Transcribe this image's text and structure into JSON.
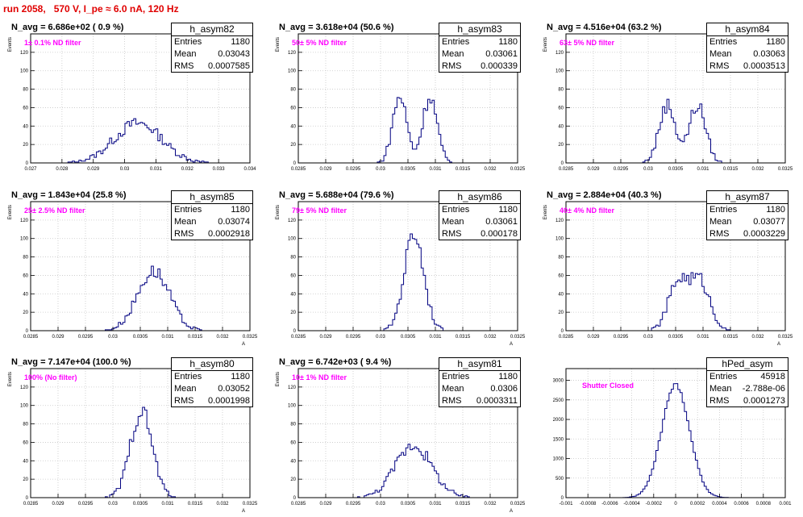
{
  "page_title": "run 2058,   570 V, I_pe ≈ 6.0 nA, 120 Hz",
  "stat_labels": {
    "entries": "Entries",
    "mean": "Mean",
    "rms": "RMS"
  },
  "colors": {
    "histogram": "#000080",
    "grid": "#c8c8c8",
    "title": "#e00000",
    "annotation": "#ff00ff"
  },
  "chart_data": [
    {
      "type": "bar",
      "name": "h_asym82",
      "title": "N_avg = 6.686e+02 ( 0.9 %)",
      "annotation": "1± 0.1% ND filter",
      "entries": "1180",
      "mean": "0.03043",
      "rms": "0.0007585",
      "xlim": [
        0.027,
        0.034
      ],
      "ylim": [
        0,
        140
      ],
      "xticks": [
        0.027,
        0.028,
        0.029,
        0.03,
        0.031,
        0.032,
        0.033,
        0.034
      ],
      "xticklabels": [
        "0.027",
        "0.028",
        "0.029",
        "0.03",
        "0.031",
        "0.032",
        "0.033",
        "0.034"
      ],
      "yticks": [
        0,
        20,
        40,
        60,
        80,
        100,
        120
      ],
      "yticklabels": [
        "0",
        "20",
        "40",
        "60",
        "80",
        "100",
        "120"
      ],
      "xlabel": "",
      "ylabel": "Events",
      "grid": true,
      "dist": {
        "type": "gauss",
        "mu": 0.03043,
        "sigma": 0.00076,
        "n": 1180
      }
    },
    {
      "type": "bar",
      "name": "h_asym83",
      "title": "N_avg = 3.618e+04 (50.6 %)",
      "annotation": "50± 5% ND filter",
      "entries": "1180",
      "mean": "0.03061",
      "rms": "0.000339",
      "xlim": [
        0.0285,
        0.0325
      ],
      "ylim": [
        0,
        140
      ],
      "xticks": [
        0.0285,
        0.029,
        0.0295,
        0.03,
        0.0305,
        0.031,
        0.0315,
        0.032,
        0.0325
      ],
      "xticklabels": [
        "0.0285",
        "0.029",
        "0.0295",
        "0.03",
        "0.0305",
        "0.031",
        "0.0315",
        "0.032",
        "0.0325"
      ],
      "yticks": [
        0,
        20,
        40,
        60,
        80,
        100,
        120
      ],
      "yticklabels": [
        "0",
        "20",
        "40",
        "60",
        "80",
        "100",
        "120"
      ],
      "xlabel": "",
      "ylabel": "Events",
      "grid": true,
      "dist": {
        "type": "double",
        "mu1": 0.03035,
        "mu2": 0.0309,
        "sigma": 0.00013,
        "n": 1180
      }
    },
    {
      "type": "bar",
      "name": "h_asym84",
      "title": "N_avg = 4.516e+04 (63.2 %)",
      "annotation": "63± 5% ND filter",
      "entries": "1180",
      "mean": "0.03063",
      "rms": "0.0003513",
      "xlim": [
        0.0285,
        0.0325
      ],
      "ylim": [
        0,
        140
      ],
      "xticks": [
        0.0285,
        0.029,
        0.0295,
        0.03,
        0.0305,
        0.031,
        0.0315,
        0.032,
        0.0325
      ],
      "xticklabels": [
        "0.0285",
        "0.029",
        "0.0295",
        "0.03",
        "0.0305",
        "0.031",
        "0.0315",
        "0.032",
        "0.0325"
      ],
      "yticks": [
        0,
        20,
        40,
        60,
        80,
        100,
        120
      ],
      "yticklabels": [
        "0",
        "20",
        "40",
        "60",
        "80",
        "100",
        "120"
      ],
      "xlabel": "",
      "ylabel": "Events",
      "grid": true,
      "dist": {
        "type": "double",
        "mu1": 0.03035,
        "mu2": 0.0309,
        "sigma": 0.00015,
        "n": 1180
      }
    },
    {
      "type": "bar",
      "name": "h_asym85",
      "title": "N_avg = 1.843e+04 (25.8 %)",
      "annotation": "25± 2.5% ND filter",
      "entries": "1180",
      "mean": "0.03074",
      "rms": "0.0002918",
      "xlim": [
        0.0285,
        0.0325
      ],
      "ylim": [
        0,
        140
      ],
      "xticks": [
        0.0285,
        0.029,
        0.0295,
        0.03,
        0.0305,
        0.031,
        0.0315,
        0.032,
        0.0325
      ],
      "xticklabels": [
        "0.0285",
        "0.029",
        "0.0295",
        "0.03",
        "0.0305",
        "0.031",
        "0.0315",
        "0.032",
        "0.0325"
      ],
      "yticks": [
        0,
        20,
        40,
        60,
        80,
        100,
        120
      ],
      "yticklabels": [
        "0",
        "20",
        "40",
        "60",
        "80",
        "100",
        "120"
      ],
      "xlabel": "A",
      "ylabel": "Events",
      "grid": true,
      "dist": {
        "type": "gauss",
        "mu": 0.03074,
        "sigma": 0.00029,
        "n": 1180
      }
    },
    {
      "type": "bar",
      "name": "h_asym86",
      "title": "N_avg = 5.688e+04 (79.6 %)",
      "annotation": "79± 5% ND filter",
      "entries": "1180",
      "mean": "0.03061",
      "rms": "0.000178",
      "xlim": [
        0.0285,
        0.0325
      ],
      "ylim": [
        0,
        140
      ],
      "xticks": [
        0.0285,
        0.029,
        0.0295,
        0.03,
        0.0305,
        0.031,
        0.0315,
        0.032,
        0.0325
      ],
      "xticklabels": [
        "0.0285",
        "0.029",
        "0.0295",
        "0.03",
        "0.0305",
        "0.031",
        "0.0315",
        "0.032",
        "0.0325"
      ],
      "yticks": [
        0,
        20,
        40,
        60,
        80,
        100,
        120
      ],
      "yticklabels": [
        "0",
        "20",
        "40",
        "60",
        "80",
        "100",
        "120"
      ],
      "xlabel": "A",
      "ylabel": "Events",
      "grid": true,
      "dist": {
        "type": "gauss",
        "mu": 0.03061,
        "sigma": 0.000178,
        "n": 1180
      }
    },
    {
      "type": "bar",
      "name": "h_asym87",
      "title": "N_avg = 2.884e+04 (40.3 %)",
      "annotation": "40± 4% ND filter",
      "entries": "1180",
      "mean": "0.03077",
      "rms": "0.0003229",
      "xlim": [
        0.0285,
        0.0325
      ],
      "ylim": [
        0,
        140
      ],
      "xticks": [
        0.0285,
        0.029,
        0.0295,
        0.03,
        0.0305,
        0.031,
        0.0315,
        0.032,
        0.0325
      ],
      "xticklabels": [
        "0.0285",
        "0.029",
        "0.0295",
        "0.03",
        "0.0305",
        "0.031",
        "0.0315",
        "0.032",
        "0.0325"
      ],
      "yticks": [
        0,
        20,
        40,
        60,
        80,
        100,
        120
      ],
      "yticklabels": [
        "0",
        "20",
        "40",
        "60",
        "80",
        "100",
        "120"
      ],
      "xlabel": "A",
      "ylabel": "Events",
      "grid": true,
      "dist": {
        "type": "double",
        "mu1": 0.03055,
        "mu2": 0.03095,
        "sigma": 0.00018,
        "n": 1180
      }
    },
    {
      "type": "bar",
      "name": "h_asym80",
      "title": "N_avg = 7.147e+04 (100.0 %)",
      "annotation": "100% (No filter)",
      "entries": "1180",
      "mean": "0.03052",
      "rms": "0.0001998",
      "xlim": [
        0.0285,
        0.0325
      ],
      "ylim": [
        0,
        140
      ],
      "xticks": [
        0.0285,
        0.029,
        0.0295,
        0.03,
        0.0305,
        0.031,
        0.0315,
        0.032,
        0.0325
      ],
      "xticklabels": [
        "0.0285",
        "0.029",
        "0.0295",
        "0.03",
        "0.0305",
        "0.031",
        "0.0315",
        "0.032",
        "0.0325"
      ],
      "yticks": [
        0,
        20,
        40,
        60,
        80,
        100,
        120
      ],
      "yticklabels": [
        "0",
        "20",
        "40",
        "60",
        "80",
        "100",
        "120"
      ],
      "xlabel": "A",
      "ylabel": "Events",
      "grid": true,
      "dist": {
        "type": "gauss",
        "mu": 0.03052,
        "sigma": 0.0002,
        "n": 1180
      }
    },
    {
      "type": "bar",
      "name": "h_asym81",
      "title": "N_avg = 6.742e+03 ( 9.4 %)",
      "annotation": "10± 1% ND filter",
      "entries": "1180",
      "mean": "0.0306",
      "rms": "0.0003311",
      "xlim": [
        0.0285,
        0.0325
      ],
      "ylim": [
        0,
        140
      ],
      "xticks": [
        0.0285,
        0.029,
        0.0295,
        0.03,
        0.0305,
        0.031,
        0.0315,
        0.032,
        0.0325
      ],
      "xticklabels": [
        "0.0285",
        "0.029",
        "0.0295",
        "0.03",
        "0.0305",
        "0.031",
        "0.0315",
        "0.032",
        "0.0325"
      ],
      "yticks": [
        0,
        20,
        40,
        60,
        80,
        100,
        120
      ],
      "yticklabels": [
        "0",
        "20",
        "40",
        "60",
        "80",
        "100",
        "120"
      ],
      "xlabel": "A",
      "ylabel": "Events",
      "grid": true,
      "dist": {
        "type": "gauss",
        "mu": 0.0306,
        "sigma": 0.00033,
        "n": 1180
      }
    },
    {
      "type": "bar",
      "name": "hPed_asym",
      "title": "",
      "annotation": "Shutter Closed",
      "entries": "45918",
      "mean": "-2.788e-06",
      "rms": "0.0001273",
      "xlim": [
        -0.001,
        0.001
      ],
      "ylim": [
        0,
        3300
      ],
      "xticks": [
        -0.001,
        -0.0008,
        -0.0006,
        -0.0004,
        -0.0002,
        0,
        0.0002,
        0.0004,
        0.0006,
        0.0008,
        0.001
      ],
      "xticklabels": [
        "-0.001",
        "-0.0008",
        "-0.0006",
        "-0.0004",
        "-0.0002",
        "0",
        "0.0002",
        "0.0004",
        "0.0006",
        "0.0008",
        "0.001"
      ],
      "yticks": [
        0,
        500,
        1000,
        1500,
        2000,
        2500,
        3000
      ],
      "yticklabels": [
        "0",
        "500",
        "1000",
        "1500",
        "2000",
        "2500",
        "3000"
      ],
      "xlabel": "",
      "ylabel": "",
      "grid": true,
      "dist": {
        "type": "gauss",
        "mu": 0,
        "sigma": 0.000127,
        "n": 45918
      }
    }
  ]
}
